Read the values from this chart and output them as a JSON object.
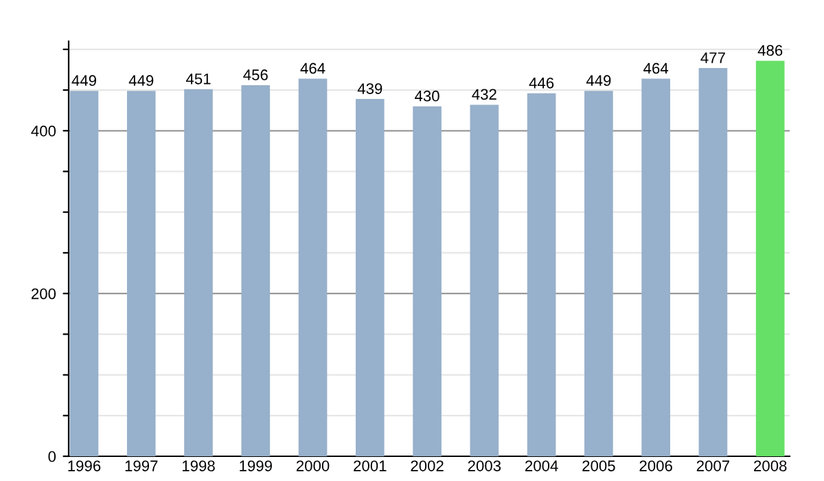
{
  "chart_data": {
    "type": "bar",
    "categories": [
      "1996",
      "1997",
      "1998",
      "1999",
      "2000",
      "2001",
      "2002",
      "2003",
      "2004",
      "2005",
      "2006",
      "2007",
      "2008"
    ],
    "values": [
      449,
      449,
      451,
      456,
      464,
      439,
      430,
      432,
      446,
      449,
      464,
      477,
      486
    ],
    "colors": [
      "#97b0cb",
      "#97b0cb",
      "#97b0cb",
      "#97b0cb",
      "#97b0cb",
      "#97b0cb",
      "#97b0cb",
      "#97b0cb",
      "#97b0cb",
      "#97b0cb",
      "#97b0cb",
      "#97b0cb",
      "#66e066"
    ],
    "ylim": [
      0,
      510
    ],
    "yticks": [
      0,
      {
        "value": 50,
        "label": null
      },
      {
        "value": 100,
        "label": null
      },
      {
        "value": 150,
        "label": null
      },
      200,
      {
        "value": 250,
        "label": null
      },
      {
        "value": 300,
        "label": null
      },
      {
        "value": 350,
        "label": null
      },
      400,
      {
        "value": 450,
        "label": null
      },
      {
        "value": 500,
        "label": null
      }
    ],
    "grid": "y",
    "data_labels": true
  }
}
